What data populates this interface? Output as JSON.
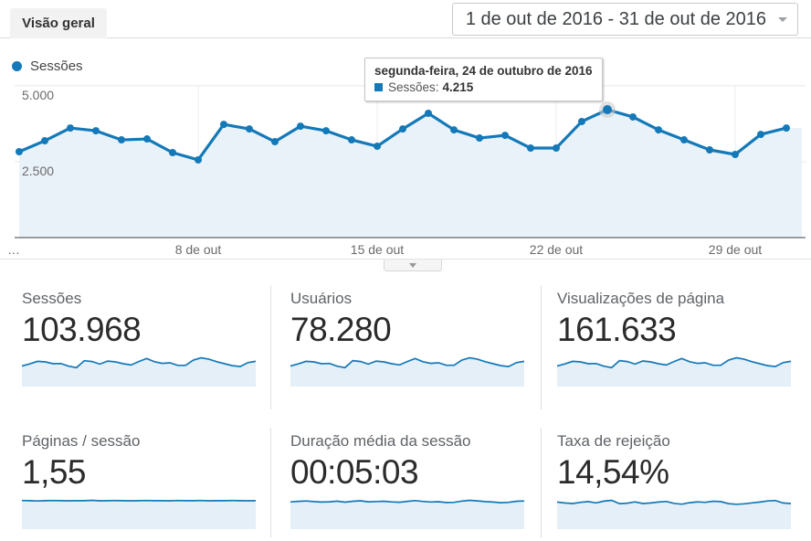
{
  "header": {
    "tab_label": "Visão geral",
    "date_range": "1 de out de 2016 - 31 de out de 2016"
  },
  "legend": {
    "series_label": "Sessões"
  },
  "tooltip": {
    "title": "segunda-feira, 24 de outubro de 2016",
    "series_label": "Sessões:",
    "value": "4.215"
  },
  "colors": {
    "accent": "#1479b8",
    "area_fill": "#eaf2f9",
    "spark_fill": "#e4eff8",
    "grid": "#ececec",
    "axis_text": "#6b6b6b",
    "axis_line": "#404040",
    "halo": "#c9c9c9"
  },
  "chart_data": {
    "type": "line",
    "title": "Sessões",
    "x_unit": "day of October 2016",
    "x_days": [
      1,
      2,
      3,
      4,
      5,
      6,
      7,
      8,
      9,
      10,
      11,
      12,
      13,
      14,
      15,
      16,
      17,
      18,
      19,
      20,
      21,
      22,
      23,
      24,
      25,
      26,
      27,
      28,
      29,
      30,
      31
    ],
    "values": [
      2830,
      3190,
      3610,
      3520,
      3220,
      3250,
      2800,
      2560,
      3730,
      3580,
      3160,
      3670,
      3520,
      3220,
      3010,
      3580,
      4095,
      3550,
      3280,
      3370,
      2950,
      2950,
      3825,
      4215,
      3975,
      3550,
      3220,
      2890,
      2740,
      3400,
      3610
    ],
    "ylim": [
      0,
      5000
    ],
    "yticks": [
      {
        "value": 5000,
        "label": "5.000"
      },
      {
        "value": 2500,
        "label": "2.500"
      }
    ],
    "xticks": [
      {
        "day": 8,
        "label": "8 de out"
      },
      {
        "day": 15,
        "label": "15 de out"
      },
      {
        "day": 22,
        "label": "22 de out"
      },
      {
        "day": 29,
        "label": "29 de out"
      }
    ],
    "x_overflow_label": "…",
    "highlight": {
      "day": 24,
      "value": 4215,
      "tooltip": "Sessões: 4.215"
    },
    "legend_position": "top-left",
    "grid": "horizontal-2500-5000 + weekly vertical"
  },
  "cards": [
    {
      "label": "Sessões",
      "value": "103.968",
      "sparkline": [
        2830,
        3190,
        3610,
        3520,
        3220,
        3250,
        2800,
        2560,
        3730,
        3580,
        3160,
        3670,
        3520,
        3220,
        3010,
        3580,
        4095,
        3550,
        3280,
        3370,
        2950,
        2950,
        3825,
        4215,
        3975,
        3550,
        3220,
        2890,
        2740,
        3400,
        3610
      ]
    },
    {
      "label": "Usuários",
      "value": "78.280",
      "sparkline": [
        2130,
        2400,
        2720,
        2650,
        2420,
        2450,
        2110,
        1930,
        2810,
        2700,
        2380,
        2760,
        2650,
        2420,
        2270,
        2700,
        3080,
        2670,
        2470,
        2540,
        2220,
        2220,
        2880,
        3170,
        2990,
        2670,
        2420,
        2180,
        2060,
        2560,
        2720
      ]
    },
    {
      "label": "Visualizações de página",
      "value": "161.633",
      "sparkline": [
        4400,
        4960,
        5610,
        5470,
        5010,
        5050,
        4350,
        3980,
        5800,
        5570,
        4910,
        5710,
        5470,
        5010,
        4680,
        5570,
        6370,
        5520,
        5100,
        5240,
        4590,
        4590,
        5950,
        6550,
        6180,
        5520,
        5010,
        4490,
        4260,
        5290,
        5610
      ]
    },
    {
      "label": "Páginas / sessão",
      "value": "1,55",
      "sparkline": [
        1.56,
        1.55,
        1.53,
        1.55,
        1.56,
        1.55,
        1.54,
        1.55,
        1.55,
        1.57,
        1.54,
        1.55,
        1.56,
        1.55,
        1.54,
        1.55,
        1.56,
        1.55,
        1.55,
        1.54,
        1.56,
        1.55,
        1.55,
        1.56,
        1.54,
        1.55,
        1.55,
        1.56,
        1.55,
        1.54,
        1.55
      ]
    },
    {
      "label": "Duração média da sessão",
      "value": "00:05:03",
      "sparkline": [
        298,
        305,
        310,
        302,
        296,
        300,
        308,
        295,
        306,
        312,
        299,
        303,
        307,
        298,
        294,
        305,
        315,
        304,
        297,
        301,
        290,
        293,
        309,
        318,
        311,
        302,
        296,
        288,
        292,
        306,
        310
      ]
    },
    {
      "label": "Taxa de rejeição",
      "value": "14,54%",
      "sparkline": [
        14.8,
        14.2,
        13.9,
        14.6,
        15.1,
        14.3,
        15.4,
        15.9,
        13.8,
        14.1,
        14.9,
        13.9,
        14.2,
        14.8,
        15.2,
        14.0,
        13.5,
        14.4,
        14.9,
        14.6,
        15.3,
        15.1,
        13.8,
        13.4,
        13.7,
        14.3,
        14.8,
        15.5,
        15.8,
        14.2,
        13.9
      ]
    }
  ]
}
